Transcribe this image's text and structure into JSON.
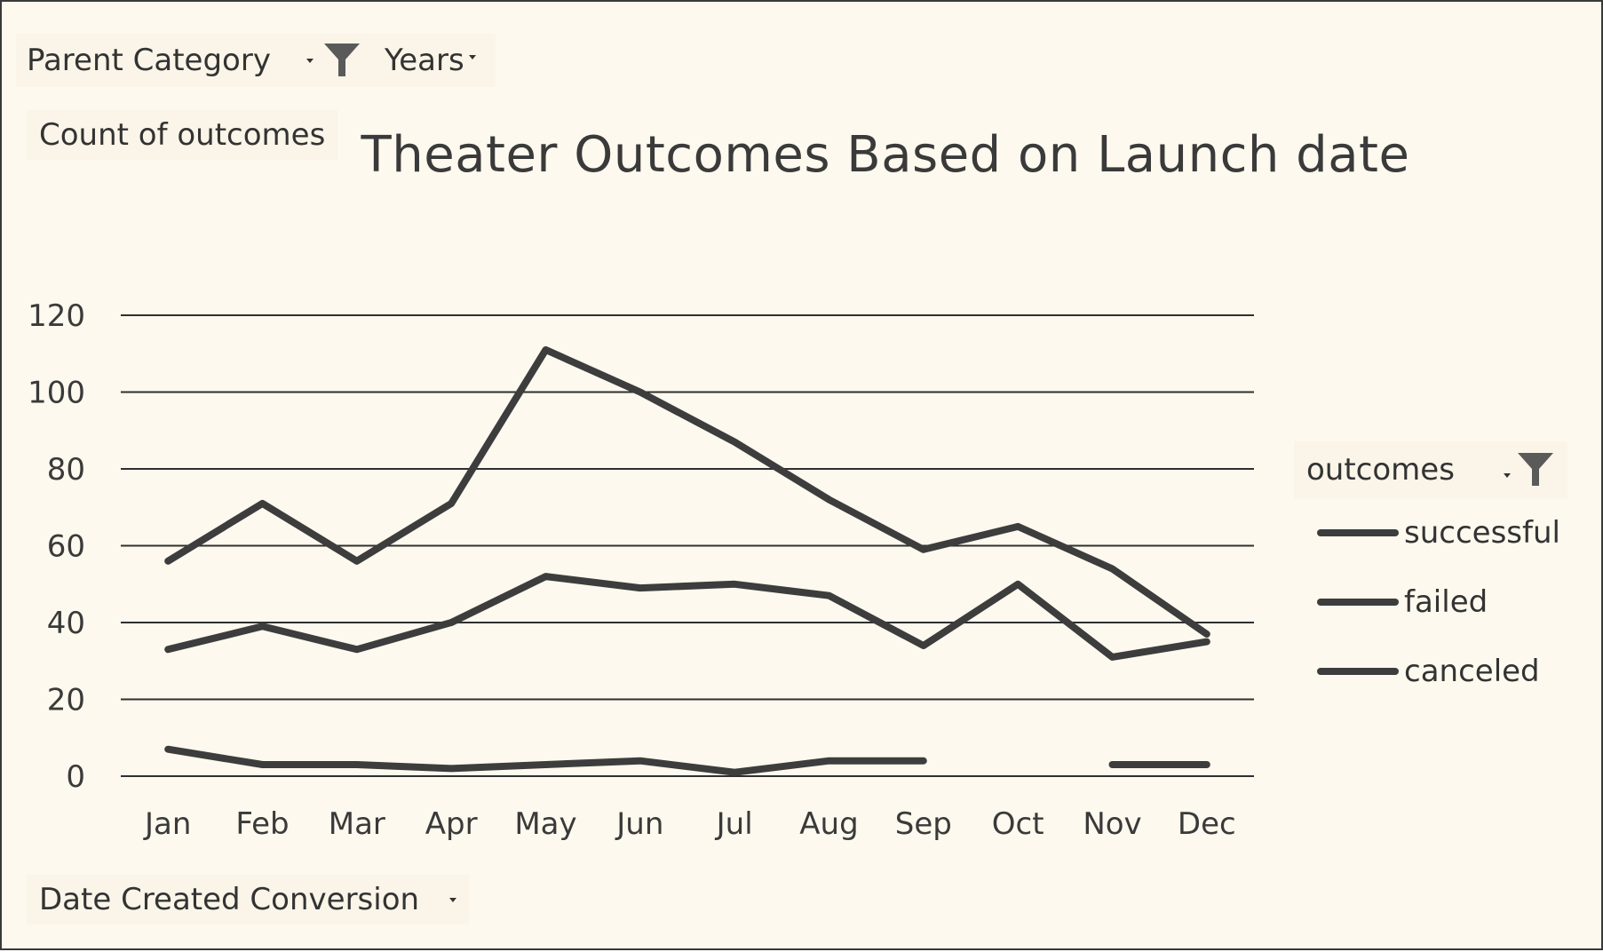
{
  "filters": {
    "parent_category": "Parent Category",
    "years": "Years",
    "value_field": "Count of outcomes",
    "axis_field": "Date Created Conversion",
    "legend_field": "outcomes"
  },
  "colors": {
    "background": "#fdf9ee",
    "line": "#3d3d3d",
    "gridline": "#2f2f2f"
  },
  "icons": {
    "filter": "funnel-icon",
    "dropdown": "chevron-down-icon"
  },
  "chart_data": {
    "type": "line",
    "title": "Theater Outcomes Based on Launch date",
    "categories": [
      "Jan",
      "Feb",
      "Mar",
      "Apr",
      "May",
      "Jun",
      "Jul",
      "Aug",
      "Sep",
      "Oct",
      "Nov",
      "Dec"
    ],
    "yticks": [
      0,
      20,
      40,
      60,
      80,
      100,
      120
    ],
    "ylim": [
      0,
      120
    ],
    "grid": true,
    "legend_position": "right",
    "series": [
      {
        "name": "successful",
        "values": [
          56,
          71,
          56,
          71,
          111,
          100,
          87,
          72,
          59,
          65,
          54,
          37
        ]
      },
      {
        "name": "failed",
        "values": [
          33,
          39,
          33,
          40,
          52,
          49,
          50,
          47,
          34,
          50,
          31,
          35
        ]
      },
      {
        "name": "canceled",
        "values": [
          7,
          3,
          3,
          2,
          3,
          4,
          1,
          4,
          4,
          null,
          3,
          3
        ]
      }
    ]
  }
}
